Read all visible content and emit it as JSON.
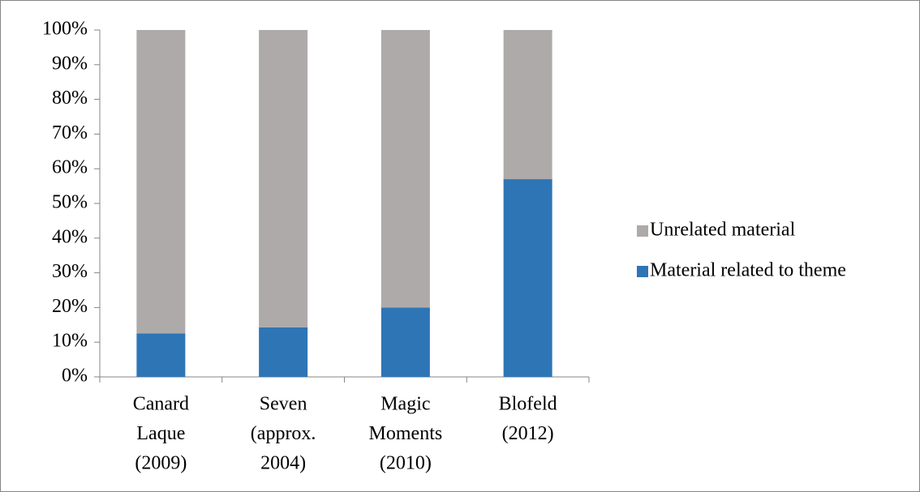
{
  "chart_data": {
    "type": "stacked_bar",
    "categories": [
      [
        "Canard",
        "Laque",
        "(2009)"
      ],
      [
        "Seven",
        "(approx.",
        "2004)"
      ],
      [
        "Magic",
        "Moments",
        "(2010)"
      ],
      [
        "Blofeld",
        "(2012)"
      ]
    ],
    "series": [
      {
        "name": "Material related to theme",
        "color": "#2e75b6",
        "values": [
          12.5,
          14.3,
          20,
          57
        ]
      },
      {
        "name": "Unrelated material",
        "color": "#aeaaaa",
        "values": [
          87.5,
          85.7,
          80,
          43
        ]
      }
    ],
    "ylim": [
      0,
      100
    ],
    "yticks": [
      {
        "value": 0,
        "label": "0%"
      },
      {
        "value": 10,
        "label": "10%"
      },
      {
        "value": 20,
        "label": "20%"
      },
      {
        "value": 30,
        "label": "30%"
      },
      {
        "value": 40,
        "label": "40%"
      },
      {
        "value": 50,
        "label": "50%"
      },
      {
        "value": 60,
        "label": "60%"
      },
      {
        "value": 70,
        "label": "70%"
      },
      {
        "value": 80,
        "label": "80%"
      },
      {
        "value": 90,
        "label": "90%"
      },
      {
        "value": 100,
        "label": "100%"
      }
    ],
    "legend": "right"
  }
}
